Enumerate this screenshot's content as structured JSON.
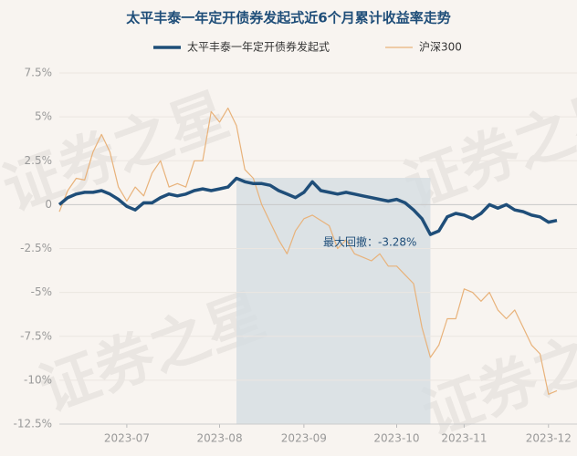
{
  "chart_data": {
    "type": "line",
    "title": "太平丰泰一年定开债券发起式近6个月累计收益率走势",
    "watermark": "证券之星",
    "categories": [
      null,
      null,
      null,
      null,
      null,
      null,
      null,
      null,
      "2023-07",
      null,
      null,
      null,
      null,
      null,
      null,
      null,
      null,
      null,
      null,
      "2023-08",
      null,
      null,
      null,
      null,
      null,
      null,
      null,
      null,
      null,
      "2023-09",
      null,
      null,
      null,
      null,
      null,
      null,
      null,
      null,
      null,
      null,
      "2023-10",
      null,
      null,
      null,
      null,
      null,
      null,
      null,
      "2023-11",
      null,
      null,
      null,
      null,
      null,
      null,
      null,
      null,
      null,
      "2023-12",
      null
    ],
    "series": [
      {
        "name": "太平丰泰一年定开债券发起式",
        "color": "#1f4e79",
        "width": 3.5,
        "values": [
          0,
          0.4,
          0.6,
          0.7,
          0.7,
          0.8,
          0.6,
          0.3,
          -0.1,
          -0.3,
          0.1,
          0.1,
          0.4,
          0.6,
          0.5,
          0.6,
          0.8,
          0.9,
          0.8,
          0.9,
          1.0,
          1.5,
          1.3,
          1.2,
          1.2,
          1.1,
          0.8,
          0.6,
          0.4,
          0.7,
          1.3,
          0.8,
          0.7,
          0.6,
          0.7,
          0.6,
          0.5,
          0.4,
          0.3,
          0.2,
          0.3,
          0.1,
          -0.3,
          -0.8,
          -1.7,
          -1.5,
          -0.7,
          -0.5,
          -0.6,
          -0.8,
          -0.5,
          0.0,
          -0.2,
          0.0,
          -0.3,
          -0.4,
          -0.6,
          -0.7,
          -1.0,
          -0.9
        ]
      },
      {
        "name": "沪深300",
        "color": "#e8b27a",
        "width": 1.2,
        "values": [
          -0.4,
          0.8,
          1.5,
          1.4,
          3.0,
          4.0,
          3.0,
          1.0,
          0.2,
          1.0,
          0.5,
          1.8,
          2.5,
          1.0,
          1.2,
          1.0,
          2.5,
          2.5,
          5.3,
          4.7,
          5.5,
          4.5,
          2.0,
          1.5,
          0.0,
          -1.0,
          -2.0,
          -2.8,
          -1.5,
          -0.8,
          -0.6,
          -0.9,
          -1.2,
          -2.5,
          -2.0,
          -2.8,
          -3.0,
          -3.2,
          -2.8,
          -3.5,
          -3.5,
          -4.0,
          -4.5,
          -7.0,
          -8.7,
          -8.0,
          -6.5,
          -6.5,
          -4.8,
          -5.0,
          -5.5,
          -5.0,
          -6.0,
          -6.5,
          -6.0,
          -7.0,
          -8.0,
          -8.5,
          -10.8,
          -10.6
        ]
      }
    ],
    "ylim": [
      -12.5,
      7.5
    ],
    "yticks": [
      {
        "value": -12.5,
        "label": "-12.5%"
      },
      {
        "value": -10,
        "label": "-10%"
      },
      {
        "value": -7.5,
        "label": "-7.5%"
      },
      {
        "value": -5,
        "label": "-5%"
      },
      {
        "value": -2.5,
        "label": "-2.5%"
      },
      {
        "value": 0,
        "label": "0"
      },
      {
        "value": 2.5,
        "label": "2.5%"
      },
      {
        "value": 5,
        "label": "5%"
      },
      {
        "value": 7.5,
        "label": "7.5%"
      }
    ],
    "grid": true,
    "legend": "top",
    "annotation": {
      "label": "最大回撤：-3.28%",
      "x_range": [
        21,
        44
      ],
      "color": "#d5dde2"
    }
  }
}
